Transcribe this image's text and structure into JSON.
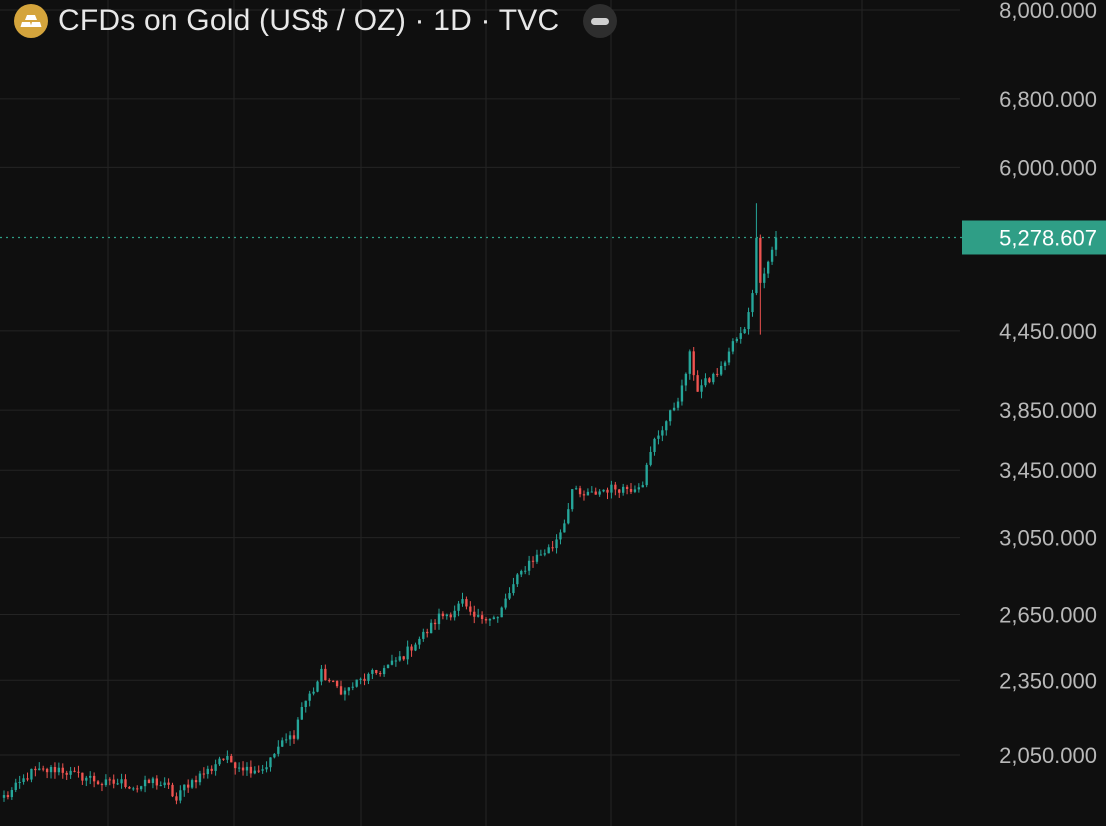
{
  "header": {
    "title": "CFDs on Gold (US$ / OZ) · 1D · TVC",
    "symbol_icon": "gold-bars-icon",
    "collapse_icon": "minus-icon"
  },
  "colors": {
    "background": "#0f0f0f",
    "grid": "#242424",
    "up": "#26a69a",
    "down": "#ef5350",
    "accent_gold": "#d4a43c",
    "price_label": "#2f9e86"
  },
  "chart_data": {
    "type": "candlestick",
    "scale": "log",
    "ylim": [
      1860,
      8000
    ],
    "y_ticks": [
      8000,
      6800,
      6000,
      4450,
      3850,
      3450,
      3050,
      2650,
      2350,
      2050
    ],
    "y_tick_labels": [
      "8,000.000",
      "6,800.000",
      "6,000.000",
      "4,450.000",
      "3,850.000",
      "3,450.000",
      "3,050.000",
      "2,650.000",
      "2,350.000",
      "2,050.000"
    ],
    "grid": true,
    "last_price": 5278.607,
    "last_price_label": "5,278.607",
    "anchors": [
      [
        0,
        1900
      ],
      [
        1,
        1905
      ],
      [
        4,
        1945
      ],
      [
        7,
        1985
      ],
      [
        10,
        1990
      ],
      [
        14,
        2000
      ],
      [
        18,
        1975
      ],
      [
        22,
        1965
      ],
      [
        25,
        1945
      ],
      [
        30,
        1950
      ],
      [
        34,
        1930
      ],
      [
        38,
        1955
      ],
      [
        42,
        1930
      ],
      [
        44,
        1885
      ],
      [
        46,
        1935
      ],
      [
        50,
        1975
      ],
      [
        53,
        2000
      ],
      [
        55,
        2040
      ],
      [
        58,
        2025
      ],
      [
        62,
        2000
      ],
      [
        66,
        2000
      ],
      [
        68,
        2030
      ],
      [
        70,
        2080
      ],
      [
        74,
        2130
      ],
      [
        76,
        2240
      ],
      [
        79,
        2310
      ],
      [
        81,
        2380
      ],
      [
        84,
        2330
      ],
      [
        87,
        2300
      ],
      [
        90,
        2340
      ],
      [
        93,
        2365
      ],
      [
        96,
        2390
      ],
      [
        99,
        2420
      ],
      [
        102,
        2460
      ],
      [
        105,
        2520
      ],
      [
        108,
        2570
      ],
      [
        111,
        2640
      ],
      [
        114,
        2660
      ],
      [
        117,
        2710
      ],
      [
        119,
        2640
      ],
      [
        121,
        2630
      ],
      [
        123,
        2645
      ],
      [
        126,
        2630
      ],
      [
        128,
        2720
      ],
      [
        131,
        2830
      ],
      [
        134,
        2920
      ],
      [
        137,
        2960
      ],
      [
        140,
        3000
      ],
      [
        143,
        3140
      ],
      [
        145,
        3330
      ],
      [
        147,
        3290
      ],
      [
        150,
        3300
      ],
      [
        153,
        3330
      ],
      [
        156,
        3340
      ],
      [
        160,
        3340
      ],
      [
        163,
        3380
      ],
      [
        166,
        3640
      ],
      [
        170,
        3820
      ],
      [
        173,
        4000
      ],
      [
        175,
        4250
      ],
      [
        177,
        4000
      ],
      [
        180,
        4070
      ],
      [
        183,
        4150
      ],
      [
        186,
        4350
      ],
      [
        189,
        4450
      ],
      [
        191,
        4800
      ],
      [
        192,
        5250
      ],
      [
        193,
        4900
      ],
      [
        195,
        5050
      ],
      [
        197,
        5280
      ]
    ]
  }
}
